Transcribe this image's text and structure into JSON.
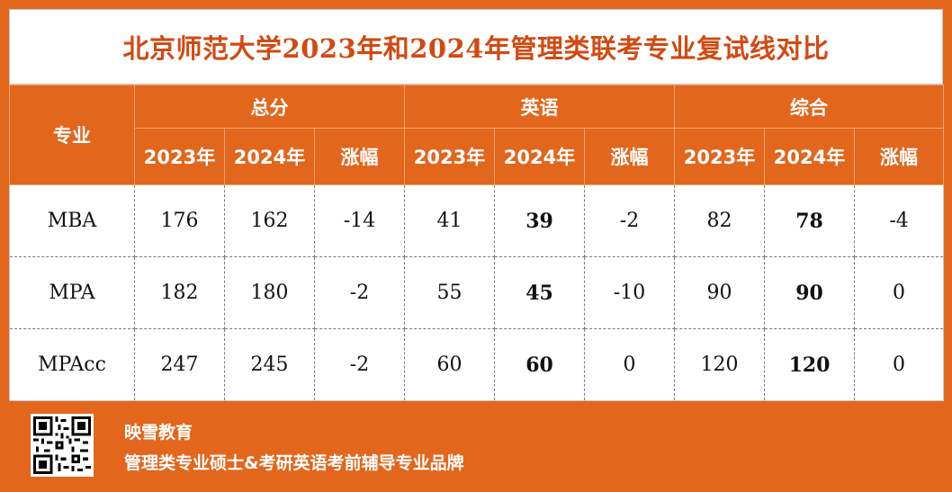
{
  "title": "北京师范大学2023年和2024年管理类联考专业复试线对比",
  "header": {
    "major": "专业",
    "groups": [
      "总分",
      "英语",
      "综合"
    ],
    "sub": [
      "2023年",
      "2024年",
      "涨幅"
    ]
  },
  "rows": [
    {
      "major": "MBA",
      "total": [
        "176",
        "162",
        "-14"
      ],
      "english": [
        "41",
        "39",
        "-2"
      ],
      "comprehensive": [
        "82",
        "78",
        "-4"
      ]
    },
    {
      "major": "MPA",
      "total": [
        "182",
        "180",
        "-2"
      ],
      "english": [
        "55",
        "45",
        "-10"
      ],
      "comprehensive": [
        "90",
        "90",
        "0"
      ]
    },
    {
      "major": "MPAcc",
      "total": [
        "247",
        "245",
        "-2"
      ],
      "english": [
        "60",
        "60",
        "0"
      ],
      "comprehensive": [
        "120",
        "120",
        "0"
      ]
    }
  ],
  "footer": {
    "brand": "映雪教育",
    "slogan": "管理类专业硕士&考研英语考前辅导专业品牌",
    "qr_icon": "qr-code-icon"
  },
  "colors": {
    "background": "#e2661c",
    "title": "#d14a12",
    "change": "#e0101e",
    "english": "#1fa1dc",
    "comprehensive": "#7a3a9a"
  }
}
